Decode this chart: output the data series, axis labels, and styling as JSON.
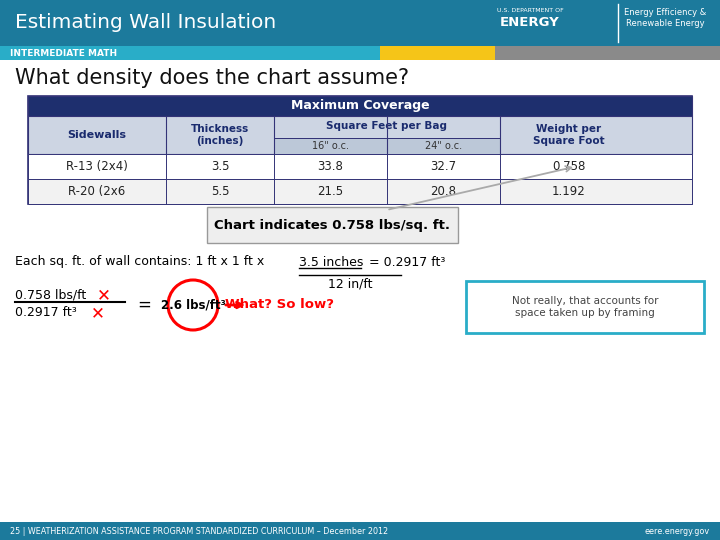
{
  "title": "Estimating Wall Insulation",
  "subtitle": "INTERMEDIATE MATH",
  "question": "What density does the chart assume?",
  "header_bg": "#1c7a9c",
  "subtitle_bg": "#29adc8",
  "yellow_block": "#f5c518",
  "gray_block": "#8a8a8a",
  "white_bg": "#ffffff",
  "table_header_bg": "#1e2f6e",
  "table_subheader_bg": "#cdd5e3",
  "table_row_alt": "#f5f5f5",
  "table_border": "#333377",
  "table_title": "Maximum Coverage",
  "row1": [
    "R-13 (2x4)",
    "3.5",
    "33.8",
    "32.7",
    "0.758"
  ],
  "row2": [
    "R-20 (2x6",
    "5.5",
    "21.5",
    "20.8",
    "1.192"
  ],
  "callout_text": "Chart indicates 0.758 lbs/sq. ft.",
  "formula_prefix": "Each sq. ft. of wall contains: 1 ft x 1 ft x ",
  "formula_underlined": "3.5 inches",
  "formula_suffix": "  = 0.2917 ft³",
  "formula_denom": "12 in/ft",
  "frac_num": "0.758 lbs/ft",
  "frac_den": "0.2917 ft³",
  "result": "2.6 lbs/ft³",
  "what_so_low": "What? So low?",
  "note_line1": "Not really, that accounts for",
  "note_line2": "space taken up by framing",
  "footer_left": "25 | WEATHERIZATION ASSISTANCE PROGRAM STANDARDIZED CURRICULUM – December 2012",
  "footer_right": "eere.energy.gov",
  "footer_bg": "#1c7a9c",
  "energy_text1": "U.S. DEPARTMENT OF",
  "energy_text2": "ENERGY",
  "energy_text3": "Energy Efficiency &\nRenewable Energy"
}
